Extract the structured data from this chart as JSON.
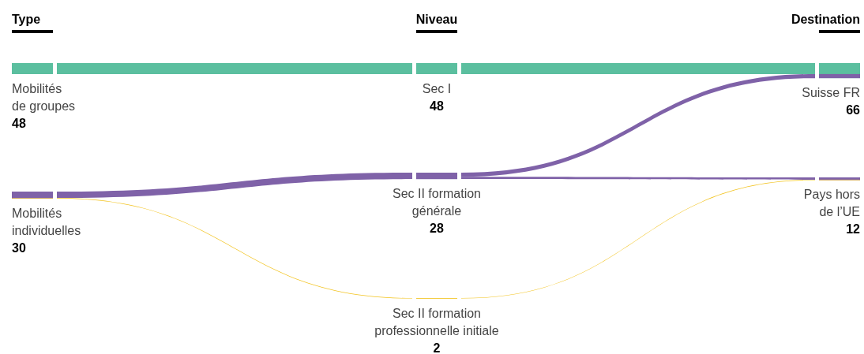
{
  "chart_data": {
    "type": "other",
    "annotations": [
      "Type",
      "Niveau",
      "Destination"
    ],
    "categories": [
      "Mobilités\nde groupes",
      "Mobilités\nindividuelles",
      "Sec I",
      "Sec II formation\ngénérale",
      "Sec II formation\nprofessionnelle initiale",
      "Suisse FR",
      "Pays hors\nde l’UE"
    ],
    "values": [
      48,
      30,
      48,
      28,
      2,
      66,
      12
    ],
    "data_labels": true,
    "colors": [
      "#5bbf9f",
      "#7f62a8",
      "#5bbf9f",
      "#7f62a8",
      "#f2c21b",
      "#5bbf9f",
      "#7f62a8"
    ]
  }
}
